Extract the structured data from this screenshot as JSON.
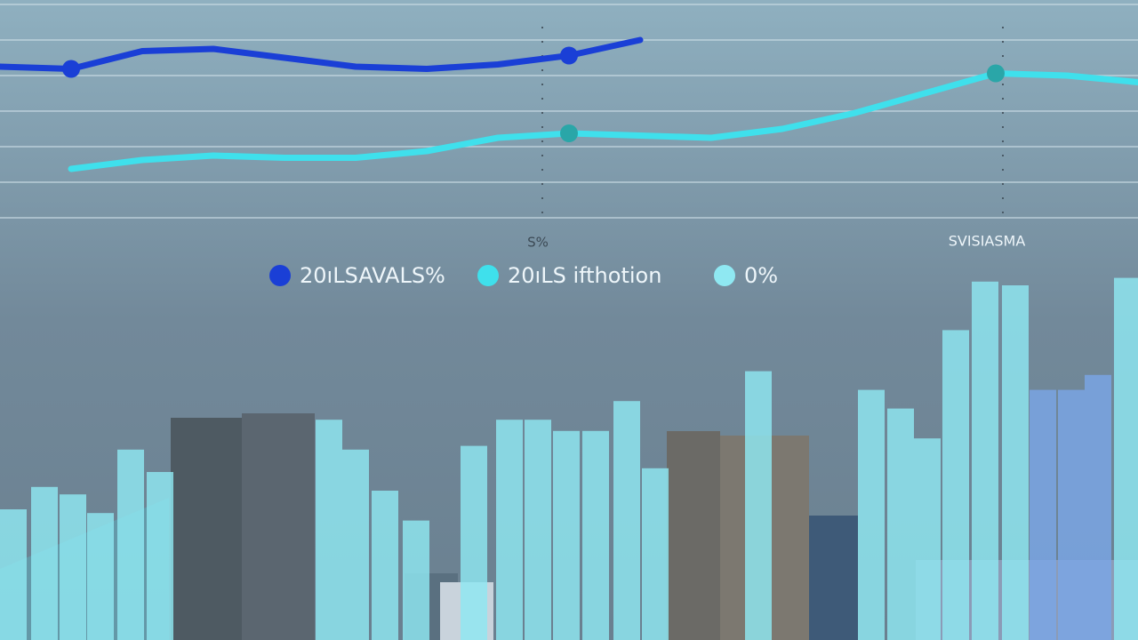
{
  "chart_data": [
    {
      "type": "line",
      "series": [
        {
          "name": "20ıLSAVALS%",
          "color": "#1a3fd6",
          "values": [
            70,
            69,
            77,
            78,
            74,
            70,
            69,
            71,
            75,
            82,
            null,
            null,
            null,
            null,
            null,
            null,
            null
          ]
        },
        {
          "name": "20ıLS ifthotion",
          "color": "#3fe0ec",
          "values": [
            null,
            24,
            28,
            30,
            29,
            29,
            32,
            38,
            40,
            39,
            38,
            42,
            49,
            58,
            67,
            66,
            63
          ]
        }
      ],
      "ylim": [
        0,
        100
      ],
      "annotations": [
        "S%",
        "SVISIASMA"
      ]
    },
    {
      "type": "bar",
      "series": [
        {
          "name": "0%",
          "color": "#8fe8f2",
          "values": [
            35,
            41,
            39,
            34,
            51,
            45,
            59,
            51,
            40,
            32,
            52,
            59,
            59,
            56,
            56,
            64,
            46,
            72,
            67,
            62,
            54,
            83,
            96,
            95,
            67,
            67,
            71,
            97
          ]
        }
      ],
      "ylim": [
        0,
        100
      ]
    }
  ]
}
